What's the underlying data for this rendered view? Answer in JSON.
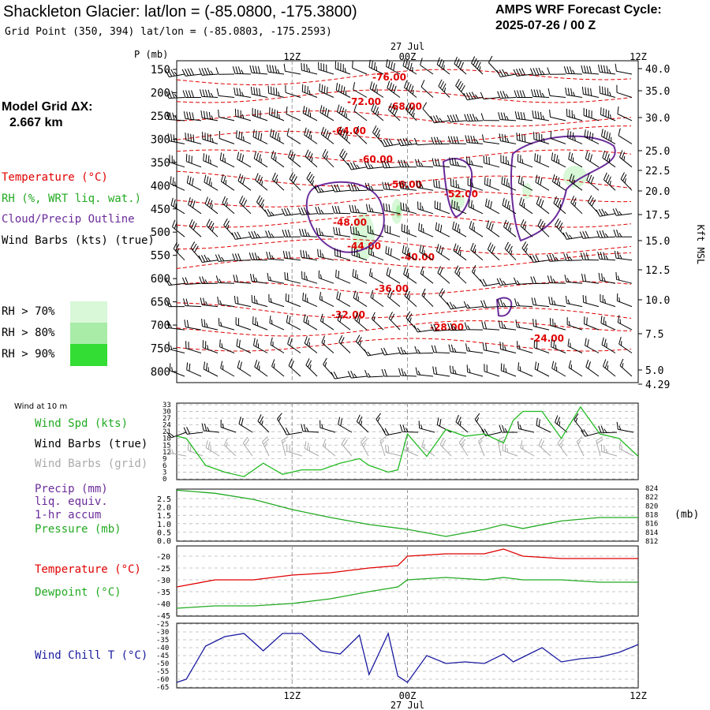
{
  "header": {
    "title": "Shackleton Glacier:  lat/lon = (-85.0800, -175.3800)",
    "grid_point": "Grid Point (350, 394) lat/lon = (-85.0803, -175.2593)",
    "cycle_label": "AMPS WRF Forecast Cycle:",
    "cycle_value": "2025-07-26 / 00  Z"
  },
  "model_grid": {
    "label": "Model Grid ΔX:",
    "value": "2.667 km"
  },
  "legend": {
    "temperature": "Temperature (°C)",
    "rh": "RH (%, WRT liq. wat.)",
    "cloud": "Cloud/Precip Outline",
    "wind_barbs": "Wind Barbs (kts) (true)",
    "rh70": "RH > 70%",
    "rh80": "RH > 80%",
    "rh90": "RH > 90%"
  },
  "colors": {
    "temperature": "#e00000",
    "rh": "#22aa22",
    "cloud": "#6a2c9a",
    "wind_chill": "#1a1aa0",
    "grid": "#9a9a9a",
    "rh70": "#d8f8d8",
    "rh80": "#a8eca8",
    "rh90": "#33dd33",
    "barb_grid": "#aaaaaa",
    "wind_spd": "#22bb22"
  },
  "time_axis": {
    "date_top": "27 Jul",
    "date_bottom": "27 Jul",
    "ticks": [
      "12Z",
      "00Z",
      "12Z"
    ]
  },
  "chart_data": [
    {
      "type": "line",
      "panel": "cross-section",
      "ylabel": "P (mb)",
      "right_label": "Kft MSL",
      "pressure_ticks": [
        150,
        200,
        250,
        300,
        350,
        400,
        450,
        500,
        550,
        600,
        650,
        700,
        750,
        800
      ],
      "height_ticks_kft": [
        "40.0",
        "35.0",
        "30.0",
        "25.0",
        "22.5",
        "20.0",
        "17.5",
        "15.0",
        "12.5",
        "10.0",
        "7.5",
        "5.0",
        "4.29"
      ],
      "temperature_contour_labels": [
        "-76.00",
        "-72.00",
        "-68.00",
        "-64.00",
        "-60.00",
        "-56.00",
        "-52.00",
        "-48.00",
        "-44.00",
        "-40.00",
        "-36.00",
        "-32.00",
        "-28.00",
        "-24.00"
      ]
    },
    {
      "type": "line",
      "panel": "wind-10m",
      "title": "Wind at 10 m",
      "series_labels": [
        "Wind Spd (kts)",
        "Wind Barbs (true)",
        "Wind Barbs (grid)"
      ],
      "yticks": [
        "33",
        "30",
        "27",
        "24",
        "21",
        "18",
        "15",
        "12",
        "9",
        "6",
        "3",
        "0"
      ],
      "ylim": [
        0,
        33
      ],
      "x_hours": [
        0,
        1,
        3,
        5,
        7,
        9,
        11,
        13,
        15,
        17,
        19,
        20,
        22,
        23,
        24,
        26,
        28,
        30,
        32,
        34,
        35,
        36,
        38,
        40,
        42,
        44,
        46,
        48
      ],
      "wind_speed": [
        19,
        18,
        6,
        3,
        1,
        7,
        2,
        4,
        4,
        7,
        9,
        6,
        3,
        4,
        20,
        10,
        22,
        19,
        20,
        16,
        26,
        30,
        30,
        18,
        32,
        20,
        18,
        10
      ]
    },
    {
      "type": "line",
      "panel": "precip-pressure",
      "series_labels": [
        "Precip (mm)",
        "liq. equiv.",
        "1-hr accum",
        "Pressure (mb)"
      ],
      "yticks_left": [
        "2.5",
        "2.0",
        "1.5",
        "1.0",
        "0.5",
        "0.0"
      ],
      "yticks_right": [
        "824",
        "822",
        "820",
        "818",
        "816",
        "814",
        "812"
      ],
      "right_unit": "(mb)",
      "ylim_right": [
        812,
        824
      ],
      "x_hours": [
        0,
        4,
        8,
        12,
        16,
        20,
        24,
        28,
        32,
        34,
        36,
        40,
        44,
        48
      ],
      "pressure": [
        823.4,
        822.7,
        821.3,
        819.0,
        817.2,
        815.6,
        814.5,
        812.9,
        814.5,
        815.6,
        814.7,
        816.4,
        817.2,
        817.2
      ]
    },
    {
      "type": "line",
      "panel": "temperature-dewpoint",
      "series_labels": [
        "Temperature (°C)",
        "Dewpoint (°C)"
      ],
      "yticks": [
        "-20",
        "-25",
        "-30",
        "-35",
        "-40",
        "-45"
      ],
      "ylim": [
        -45,
        -17
      ],
      "x_hours": [
        0,
        4,
        8,
        12,
        16,
        20,
        23,
        24,
        28,
        32,
        34,
        36,
        40,
        44,
        48
      ],
      "temperature": [
        -33,
        -30,
        -30,
        -28,
        -27,
        -25,
        -24,
        -20,
        -19,
        -19,
        -17,
        -20,
        -21,
        -21,
        -21
      ],
      "dewpoint": [
        -42,
        -41,
        -41,
        -40,
        -38,
        -35,
        -33,
        -30,
        -29,
        -30,
        -29,
        -30,
        -30,
        -31,
        -31
      ]
    },
    {
      "type": "line",
      "panel": "wind-chill",
      "series_labels": [
        "Wind Chill T (°C)"
      ],
      "yticks": [
        "-25",
        "-30",
        "-35",
        "-40",
        "-45",
        "-50",
        "-55",
        "-60",
        "-65"
      ],
      "ylim": [
        -65,
        -25
      ],
      "x_hours": [
        0,
        1,
        3,
        5,
        7,
        9,
        11,
        13,
        15,
        17,
        19,
        20,
        22,
        23,
        24,
        26,
        28,
        30,
        32,
        34,
        35,
        36,
        38,
        40,
        42,
        44,
        46,
        48
      ],
      "wind_chill": [
        -62,
        -60,
        -39,
        -33,
        -31,
        -42,
        -31,
        -31,
        -42,
        -44,
        -32,
        -57,
        -31,
        -58,
        -62,
        -45,
        -50,
        -49,
        -50,
        -44,
        -49,
        -46,
        -40,
        -49,
        -47,
        -46,
        -43,
        -38
      ]
    }
  ]
}
